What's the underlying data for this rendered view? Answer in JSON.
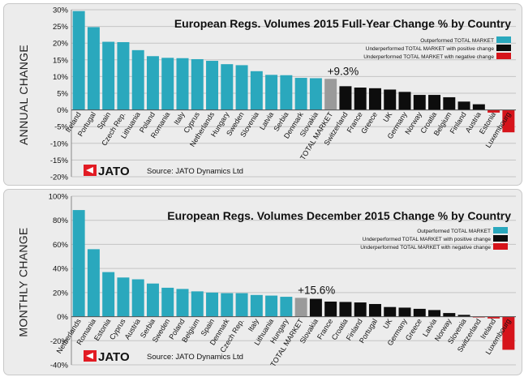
{
  "panels": {
    "annual_label": "ANNUAL CHANGE",
    "monthly_label": "MONTHLY CHANGE"
  },
  "legend": {
    "outperformed": "Outperformed TOTAL MARKET",
    "under_positive": "Underperformed TOTAL MARKET with positive change",
    "under_negative": "Underperformed TOTAL MARKET with negative change"
  },
  "brand": {
    "logo_text": "JATO",
    "source": "Source: JATO Dynamics Ltd"
  },
  "colors": {
    "teal": "#2aa8bd",
    "gray": "#9a9a9a",
    "black": "#0d0d0d",
    "red": "#d6141b",
    "logo_red": "#e21b23"
  },
  "chart_data": [
    {
      "type": "bar",
      "title": "European Regs. Volumes 2015 Full-Year Change % by Country",
      "annotation": "+9.3%",
      "ylim": [
        -20,
        30
      ],
      "yticks": [
        -20,
        -15,
        -10,
        -5,
        0,
        5,
        10,
        15,
        20,
        25,
        30
      ],
      "grid": true,
      "categories": [
        "Ireland",
        "Portugal",
        "Spain",
        "Czech Rep.",
        "Lithuania",
        "Poland",
        "Romania",
        "Italy",
        "Cyprus",
        "Netherlands",
        "Hungary",
        "Sweden",
        "Slovenia",
        "Latvia",
        "Serbia",
        "Denmark",
        "Slovakia",
        "TOTAL MARKET",
        "Switzerland",
        "France",
        "Greece",
        "UK",
        "Germany",
        "Norway",
        "Croatia",
        "Belgium",
        "Finland",
        "Austria",
        "Estonia",
        "Luxembourg"
      ],
      "values": [
        29.6,
        24.8,
        20.4,
        20.3,
        17.9,
        16.1,
        15.6,
        15.5,
        15.2,
        14.7,
        13.7,
        13.4,
        11.6,
        10.5,
        10.4,
        9.6,
        9.5,
        9.3,
        7.1,
        6.7,
        6.5,
        6.1,
        5.4,
        4.5,
        4.5,
        3.8,
        2.5,
        1.7,
        -0.8,
        -6.7
      ],
      "groups": [
        "teal",
        "teal",
        "teal",
        "teal",
        "teal",
        "teal",
        "teal",
        "teal",
        "teal",
        "teal",
        "teal",
        "teal",
        "teal",
        "teal",
        "teal",
        "teal",
        "teal",
        "gray",
        "black",
        "black",
        "black",
        "black",
        "black",
        "black",
        "black",
        "black",
        "black",
        "black",
        "red",
        "red"
      ]
    },
    {
      "type": "bar",
      "title": "European Regs. Volumes December 2015 Change % by Country",
      "annotation": "+15.6%",
      "ylim": [
        -40,
        100
      ],
      "yticks": [
        -40,
        -20,
        0,
        20,
        40,
        60,
        80,
        100
      ],
      "grid": true,
      "categories": [
        "Netherlands",
        "Romania",
        "Estonia",
        "Cyprus",
        "Austria",
        "Serbia",
        "Sweden",
        "Poland",
        "Belgium",
        "Spain",
        "Denmark",
        "Czech Rep.",
        "Italy",
        "Lithuania",
        "Hungary",
        "TOTAL MARKET",
        "Slovakia",
        "France",
        "Croatia",
        "Finland",
        "Portugal",
        "UK",
        "Germany",
        "Greece",
        "Latvia",
        "Norway",
        "Slovenia",
        "Switzerland",
        "Ireland",
        "Luxembourg"
      ],
      "values": [
        88.5,
        56,
        37,
        32.5,
        31,
        27.5,
        24,
        23,
        21,
        20,
        19.5,
        19.5,
        18,
        17.5,
        16.5,
        15.6,
        14.8,
        12.5,
        12.2,
        11.8,
        10.5,
        8,
        7.5,
        6.5,
        5.5,
        3,
        1.5,
        -0.5,
        -1.5,
        -27.5
      ],
      "groups": [
        "teal",
        "teal",
        "teal",
        "teal",
        "teal",
        "teal",
        "teal",
        "teal",
        "teal",
        "teal",
        "teal",
        "teal",
        "teal",
        "teal",
        "teal",
        "gray",
        "black",
        "black",
        "black",
        "black",
        "black",
        "black",
        "black",
        "black",
        "black",
        "black",
        "black",
        "red",
        "red",
        "red"
      ]
    }
  ]
}
